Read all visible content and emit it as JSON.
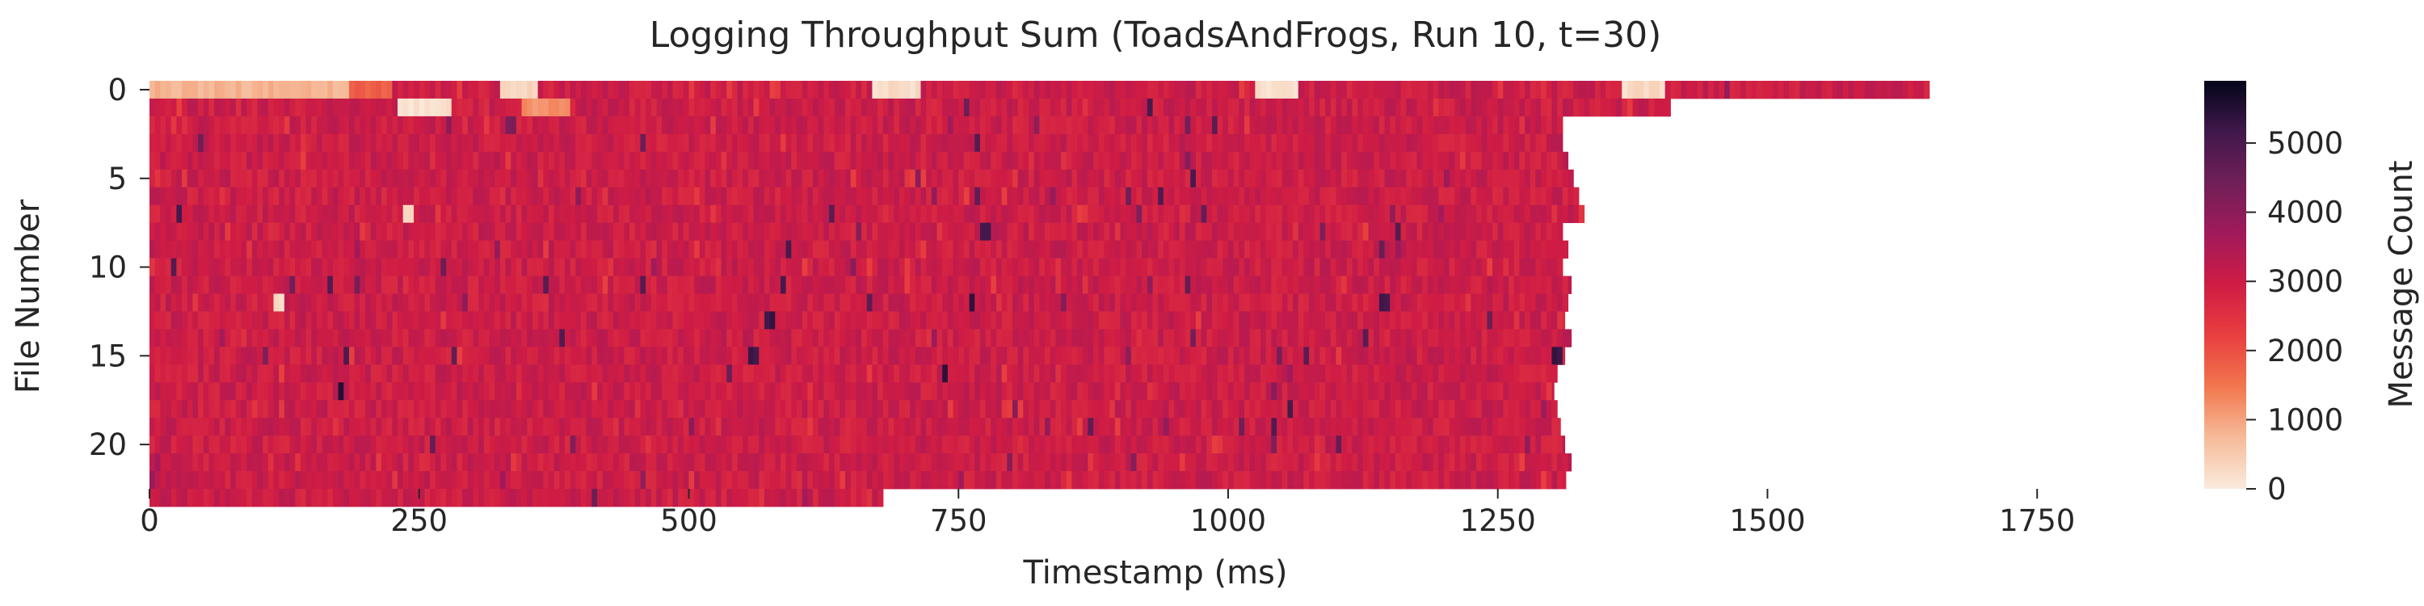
{
  "chart_data": {
    "type": "heatmap",
    "title": "Logging Throughput Sum (ToadsAndFrogs, Run 10, t=30)",
    "xlabel": "Timestamp (ms)",
    "ylabel": "File Number",
    "x_ticks": [
      0,
      250,
      500,
      750,
      1000,
      1250,
      1500,
      1750
    ],
    "x_tick_labels": [
      "0",
      "250",
      "500",
      "750",
      "1000",
      "1250",
      "1500",
      "1750"
    ],
    "y_ticks": [
      0,
      5,
      10,
      15,
      20
    ],
    "y_tick_labels": [
      "0",
      "5",
      "10",
      "15",
      "20"
    ],
    "xlim": [
      0,
      1830
    ],
    "ylim": [
      0,
      23
    ],
    "rows": 23,
    "bin_ms": 5,
    "colorbar": {
      "label": "Message Count",
      "min": 0,
      "max": 5900,
      "ticks": [
        0,
        1000,
        2000,
        3000,
        4000,
        5000
      ],
      "tick_labels": [
        "0",
        "1000",
        "2000",
        "3000",
        "4000",
        "5000"
      ]
    },
    "colormap": [
      "#faebdd",
      "#f6bb99",
      "#f2774e",
      "#e83f3f",
      "#cf1c44",
      "#a11a5b",
      "#701f57",
      "#40184b",
      "#03051a"
    ],
    "typical_value": 3000,
    "row_end_ms": [
      1650,
      1410,
      1310,
      1310,
      1315,
      1320,
      1325,
      1330,
      1310,
      1315,
      1310,
      1318,
      1315,
      1312,
      1318,
      1312,
      1305,
      1302,
      1305,
      1308,
      1312,
      1318,
      1313
    ],
    "row_23_end_ms": 680,
    "low_segments": [
      {
        "row": 0,
        "from_ms": 0,
        "to_ms": 185,
        "value": 800
      },
      {
        "row": 0,
        "from_ms": 185,
        "to_ms": 225,
        "value": 1800
      },
      {
        "row": 0,
        "from_ms": 325,
        "to_ms": 360,
        "value": 300
      },
      {
        "row": 0,
        "from_ms": 670,
        "to_ms": 715,
        "value": 200
      },
      {
        "row": 0,
        "from_ms": 1023,
        "to_ms": 1063,
        "value": 200
      },
      {
        "row": 0,
        "from_ms": 1365,
        "to_ms": 1405,
        "value": 250
      },
      {
        "row": 1,
        "from_ms": 228,
        "to_ms": 280,
        "value": 150
      },
      {
        "row": 1,
        "from_ms": 345,
        "to_ms": 390,
        "value": 1200
      },
      {
        "row": 7,
        "from_ms": 232,
        "to_ms": 245,
        "value": 200
      },
      {
        "row": 12,
        "from_ms": 114,
        "to_ms": 124,
        "value": 200
      }
    ],
    "high_segments": [
      {
        "row": 7,
        "from_ms": 25,
        "to_ms": 30,
        "value": 5000
      },
      {
        "row": 8,
        "from_ms": 770,
        "to_ms": 780,
        "value": 5200
      },
      {
        "row": 8,
        "from_ms": 1155,
        "to_ms": 1160,
        "value": 4800
      },
      {
        "row": 9,
        "from_ms": 590,
        "to_ms": 595,
        "value": 5000
      },
      {
        "row": 9,
        "from_ms": 1140,
        "to_ms": 1145,
        "value": 4500
      },
      {
        "row": 10,
        "from_ms": 18,
        "to_ms": 23,
        "value": 5000
      },
      {
        "row": 11,
        "from_ms": 583,
        "to_ms": 588,
        "value": 5200
      },
      {
        "row": 11,
        "from_ms": 958,
        "to_ms": 963,
        "value": 4600
      },
      {
        "row": 12,
        "from_ms": 760,
        "to_ms": 765,
        "value": 5400
      },
      {
        "row": 12,
        "from_ms": 1140,
        "to_ms": 1150,
        "value": 5200
      },
      {
        "row": 13,
        "from_ms": 570,
        "to_ms": 578,
        "value": 5200
      },
      {
        "row": 14,
        "from_ms": 1125,
        "to_ms": 1130,
        "value": 4800
      },
      {
        "row": 14,
        "from_ms": 380,
        "to_ms": 385,
        "value": 4800
      },
      {
        "row": 15,
        "from_ms": 180,
        "to_ms": 185,
        "value": 5000
      },
      {
        "row": 15,
        "from_ms": 555,
        "to_ms": 562,
        "value": 5200
      },
      {
        "row": 15,
        "from_ms": 1300,
        "to_ms": 1310,
        "value": 5200
      },
      {
        "row": 16,
        "from_ms": 735,
        "to_ms": 740,
        "value": 5300
      },
      {
        "row": 17,
        "from_ms": 175,
        "to_ms": 180,
        "value": 5400
      }
    ]
  }
}
